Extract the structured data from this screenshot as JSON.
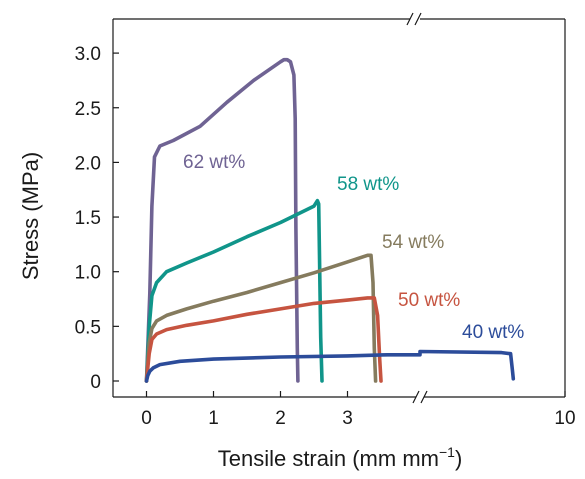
{
  "chart_data": {
    "type": "line",
    "xlabel": "Tensile strain (mm mm",
    "xlabel_sup": "−1",
    "xlabel_close": ")",
    "ylabel": "Stress (MPa)",
    "x_ticks": [
      "0",
      "1",
      "2",
      "3",
      "10"
    ],
    "y_ticks": [
      "0",
      "0.5",
      "1.0",
      "1.5",
      "2.0",
      "2.5",
      "3.0"
    ],
    "xlim": [
      -0.5,
      10
    ],
    "x_axis_break": [
      3.9,
      8.4
    ],
    "ylim": [
      -0.15,
      3.25
    ],
    "grid": false,
    "series": [
      {
        "name": "62 wt%",
        "color": "#6f6393",
        "x": [
          0.0,
          0.05,
          0.08,
          0.12,
          0.2,
          0.4,
          0.8,
          1.2,
          1.6,
          2.0,
          2.05,
          2.1,
          2.15,
          2.2,
          2.22,
          2.23,
          2.25,
          2.26
        ],
        "y": [
          0.0,
          0.8,
          1.6,
          2.05,
          2.15,
          2.2,
          2.33,
          2.55,
          2.75,
          2.92,
          2.94,
          2.94,
          2.92,
          2.8,
          2.4,
          1.4,
          0.3,
          0.0
        ]
      },
      {
        "name": "58 wt%",
        "color": "#10958a",
        "x": [
          0.0,
          0.04,
          0.08,
          0.15,
          0.3,
          0.6,
          1.0,
          1.5,
          2.0,
          2.5,
          2.55,
          2.57,
          2.58,
          2.6,
          2.62
        ],
        "y": [
          0.0,
          0.5,
          0.78,
          0.9,
          1.0,
          1.08,
          1.18,
          1.32,
          1.45,
          1.6,
          1.65,
          1.62,
          1.2,
          0.4,
          0.0
        ]
      },
      {
        "name": "54 wt%",
        "color": "#857b5e",
        "x": [
          0.0,
          0.04,
          0.08,
          0.15,
          0.3,
          0.6,
          1.0,
          1.5,
          2.0,
          2.5,
          3.0,
          3.3,
          3.35,
          3.38,
          3.4,
          3.42
        ],
        "y": [
          0.0,
          0.35,
          0.48,
          0.55,
          0.6,
          0.66,
          0.73,
          0.81,
          0.9,
          0.99,
          1.09,
          1.15,
          1.15,
          0.9,
          0.3,
          0.0
        ]
      },
      {
        "name": "50 wt%",
        "color": "#c65440",
        "x": [
          0.0,
          0.04,
          0.08,
          0.15,
          0.3,
          0.6,
          1.0,
          1.5,
          2.0,
          2.5,
          3.0,
          3.3,
          3.4,
          3.45,
          3.48,
          3.5
        ],
        "y": [
          0.0,
          0.25,
          0.38,
          0.43,
          0.47,
          0.51,
          0.55,
          0.61,
          0.66,
          0.71,
          0.74,
          0.76,
          0.76,
          0.6,
          0.2,
          0.0
        ]
      },
      {
        "name": "40 wt%",
        "color": "#2c4c9a",
        "x": [
          0.0,
          0.02,
          0.05,
          0.1,
          0.2,
          0.5,
          1.0,
          2.0,
          3.0,
          3.6,
          4.0,
          4.0,
          6.0,
          8.0,
          9.3,
          9.4,
          9.42,
          9.43
        ],
        "y": [
          0.0,
          0.05,
          0.09,
          0.12,
          0.15,
          0.18,
          0.2,
          0.22,
          0.23,
          0.24,
          0.24,
          0.27,
          0.27,
          0.27,
          0.26,
          0.25,
          0.1,
          0.02
        ]
      }
    ]
  }
}
